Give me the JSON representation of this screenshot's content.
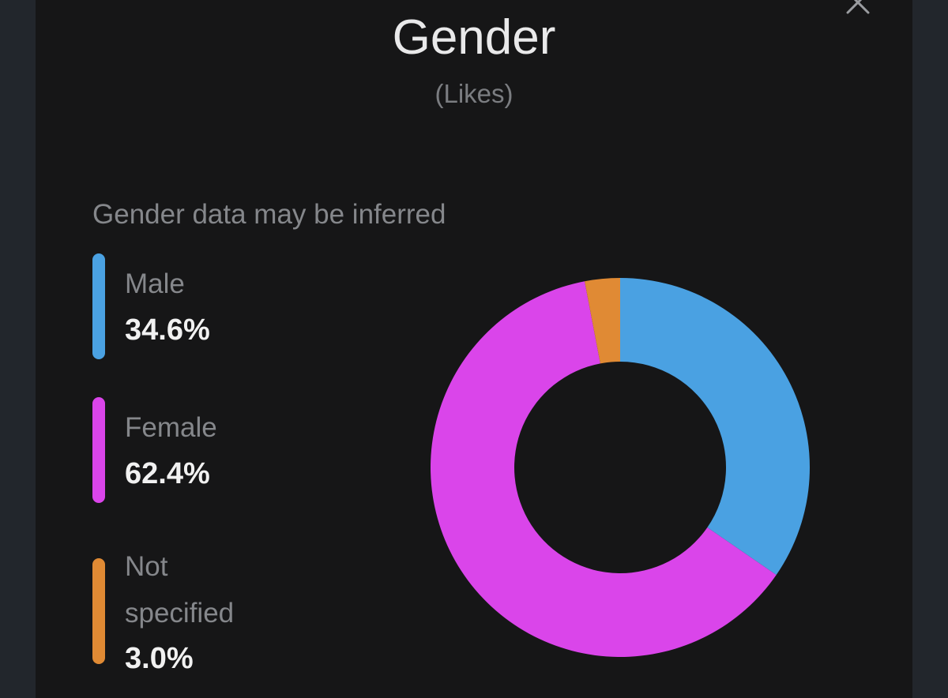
{
  "modal": {
    "title": "Gender",
    "subtitle": "(Likes)",
    "note": "Gender data may be inferred",
    "close_icon": "close-icon"
  },
  "colors": {
    "background": "#161617",
    "male": "#4aa1e2",
    "female": "#da45ea",
    "not_specified": "#e08a34"
  },
  "legend": [
    {
      "label": "Male",
      "value": "34.6%",
      "color": "#4aa1e2"
    },
    {
      "label": "Female",
      "value": "62.4%",
      "color": "#da45ea"
    },
    {
      "label": "Not specified",
      "value": "3.0%",
      "color": "#e08a34"
    }
  ],
  "chart_data": {
    "type": "pie",
    "donut": true,
    "categories": [
      "Male",
      "Female",
      "Not specified"
    ],
    "values": [
      34.6,
      62.4,
      3.0
    ],
    "colors": [
      "#4aa1e2",
      "#da45ea",
      "#e08a34"
    ],
    "title": "Gender",
    "subtitle": "(Likes)"
  }
}
